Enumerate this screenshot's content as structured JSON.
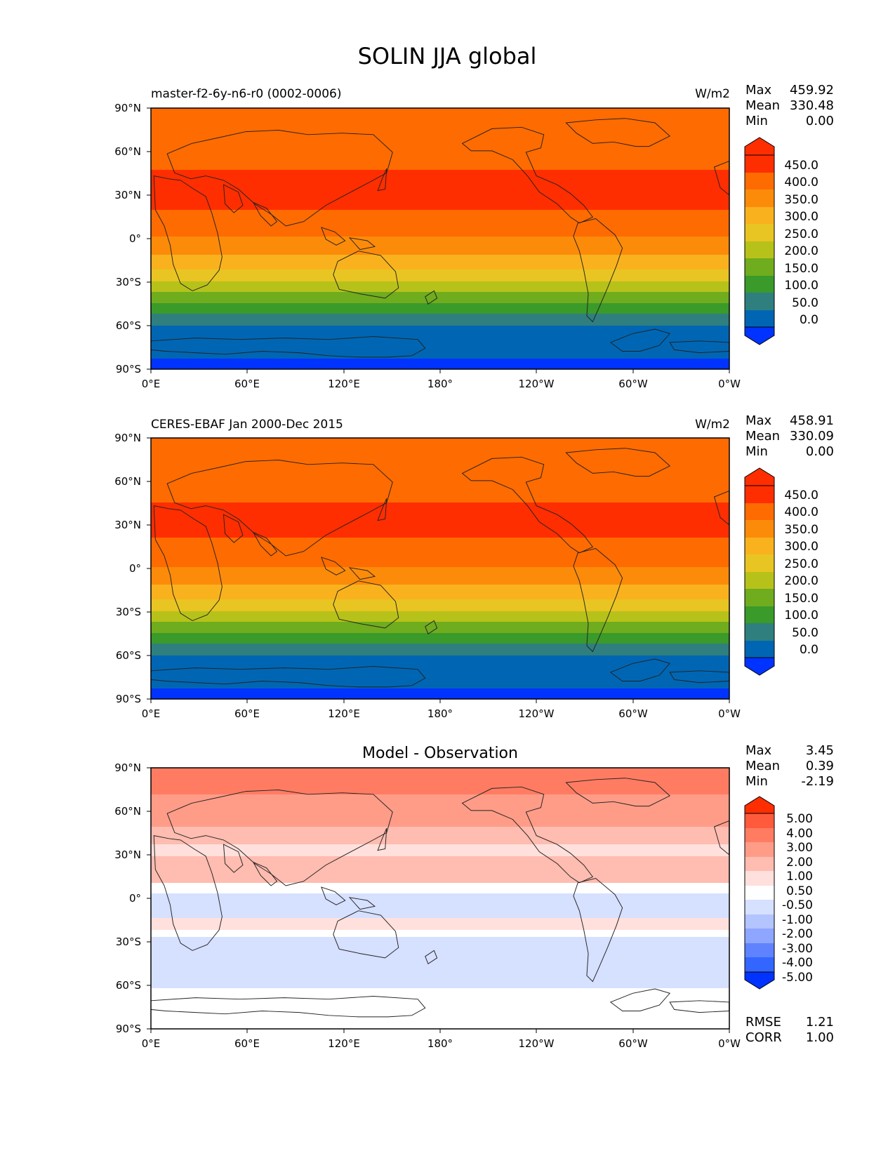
{
  "figure_title": "SOLIN JJA global",
  "x_ticks": [
    "0°E",
    "60°E",
    "120°E",
    "180°",
    "120°W",
    "60°W",
    "0°W"
  ],
  "y_ticks": [
    "90°N",
    "60°N",
    "30°N",
    "0°",
    "30°S",
    "60°S",
    "90°S"
  ],
  "colors": {
    "field_palette": [
      "#0033ff",
      "#0066b3",
      "#2f7f7f",
      "#3a9a2a",
      "#6fac1e",
      "#b6c21a",
      "#e8c522",
      "#f9b21e",
      "#fc8b0a",
      "#fe6b01",
      "#ff2e00"
    ],
    "diff_palette": [
      "#0033ff",
      "#3366ff",
      "#5f82ff",
      "#8ea6ff",
      "#b3c4ff",
      "#d6e0ff",
      "#ffffff",
      "#ffe0dc",
      "#ffbcb0",
      "#ff9c88",
      "#ff7c62",
      "#ff5a3c",
      "#ff2e00"
    ]
  },
  "panels": [
    {
      "title_left": "master-f2-6y-n6-r0 (0002-0006)",
      "title_center": "",
      "units": "W/m2",
      "stats": [
        {
          "label": "Max",
          "value": "459.92"
        },
        {
          "label": "Mean",
          "value": "330.48"
        },
        {
          "label": "Min",
          "value": "0.00"
        }
      ],
      "colorbar_labels": [
        "450.0",
        "400.0",
        "350.0",
        "300.0",
        "250.0",
        "200.0",
        "150.0",
        "100.0",
        "50.0",
        "0.0"
      ],
      "footer_stats": []
    },
    {
      "title_left": "CERES-EBAF Jan 2000-Dec 2015",
      "title_center": "",
      "units": "W/m2",
      "stats": [
        {
          "label": "Max",
          "value": "458.91"
        },
        {
          "label": "Mean",
          "value": "330.09"
        },
        {
          "label": "Min",
          "value": "0.00"
        }
      ],
      "colorbar_labels": [
        "450.0",
        "400.0",
        "350.0",
        "300.0",
        "250.0",
        "200.0",
        "150.0",
        "100.0",
        "50.0",
        "0.0"
      ],
      "footer_stats": []
    },
    {
      "title_left": "",
      "title_center": "Model - Observation",
      "units": "",
      "stats": [
        {
          "label": "Max",
          "value": "3.45"
        },
        {
          "label": "Mean",
          "value": "0.39"
        },
        {
          "label": "Min",
          "value": "-2.19"
        }
      ],
      "colorbar_labels": [
        "5.00",
        "4.00",
        "3.00",
        "2.00",
        "1.00",
        "0.50",
        "-0.50",
        "-1.00",
        "-2.00",
        "-3.00",
        "-4.00",
        "-5.00"
      ],
      "footer_stats": [
        {
          "label": "RMSE",
          "value": "1.21"
        },
        {
          "label": "CORR",
          "value": "1.00"
        }
      ]
    }
  ],
  "chart_data": [
    {
      "type": "heatmap",
      "title": "master-f2-6y-n6-r0 (0002-0006)",
      "units": "W/m2",
      "xlim": [
        0,
        360
      ],
      "ylim": [
        -90,
        90
      ],
      "levels": [
        0,
        50,
        100,
        150,
        200,
        250,
        300,
        350,
        400,
        450
      ],
      "zonal_bands": [
        {
          "lat": [
            47,
            90
          ],
          "value_range": [
            400,
            450
          ]
        },
        {
          "lat": [
            20,
            47
          ],
          "value_range": [
            450,
            460
          ]
        },
        {
          "lat": [
            0,
            20
          ],
          "value_range": [
            400,
            450
          ]
        },
        {
          "lat": [
            -12,
            0
          ],
          "value_range": [
            350,
            400
          ]
        },
        {
          "lat": [
            -22,
            -12
          ],
          "value_range": [
            300,
            350
          ]
        },
        {
          "lat": [
            -30,
            -22
          ],
          "value_range": [
            250,
            300
          ]
        },
        {
          "lat": [
            -37,
            -30
          ],
          "value_range": [
            200,
            250
          ]
        },
        {
          "lat": [
            -45,
            -37
          ],
          "value_range": [
            150,
            200
          ]
        },
        {
          "lat": [
            -52,
            -45
          ],
          "value_range": [
            100,
            150
          ]
        },
        {
          "lat": [
            -60,
            -52
          ],
          "value_range": [
            50,
            100
          ]
        },
        {
          "lat": [
            -83,
            -60
          ],
          "value_range": [
            0,
            50
          ]
        },
        {
          "lat": [
            -90,
            -83
          ],
          "value_range": [
            0,
            0
          ]
        }
      ],
      "max": 459.92,
      "mean": 330.48,
      "min": 0.0
    },
    {
      "type": "heatmap",
      "title": "CERES-EBAF Jan 2000-Dec 2015",
      "units": "W/m2",
      "xlim": [
        0,
        360
      ],
      "ylim": [
        -90,
        90
      ],
      "levels": [
        0,
        50,
        100,
        150,
        200,
        250,
        300,
        350,
        400,
        450
      ],
      "zonal_bands": [
        {
          "lat": [
            46,
            90
          ],
          "value_range": [
            400,
            450
          ]
        },
        {
          "lat": [
            21,
            46
          ],
          "value_range": [
            450,
            460
          ]
        },
        {
          "lat": [
            0,
            21
          ],
          "value_range": [
            400,
            450
          ]
        },
        {
          "lat": [
            -12,
            0
          ],
          "value_range": [
            350,
            400
          ]
        },
        {
          "lat": [
            -22,
            -12
          ],
          "value_range": [
            300,
            350
          ]
        },
        {
          "lat": [
            -30,
            -22
          ],
          "value_range": [
            250,
            300
          ]
        },
        {
          "lat": [
            -37,
            -30
          ],
          "value_range": [
            200,
            250
          ]
        },
        {
          "lat": [
            -45,
            -37
          ],
          "value_range": [
            150,
            200
          ]
        },
        {
          "lat": [
            -52,
            -45
          ],
          "value_range": [
            100,
            150
          ]
        },
        {
          "lat": [
            -60,
            -52
          ],
          "value_range": [
            50,
            100
          ]
        },
        {
          "lat": [
            -83,
            -60
          ],
          "value_range": [
            0,
            50
          ]
        },
        {
          "lat": [
            -90,
            -83
          ],
          "value_range": [
            0,
            0
          ]
        }
      ],
      "max": 458.91,
      "mean": 330.09,
      "min": 0.0
    },
    {
      "type": "heatmap",
      "title": "Model - Observation",
      "xlim": [
        0,
        360
      ],
      "ylim": [
        -90,
        90
      ],
      "levels": [
        -5,
        -4,
        -3,
        -2,
        -1,
        -0.5,
        0.5,
        1,
        2,
        3,
        4,
        5
      ],
      "zonal_bands": [
        {
          "lat": [
            72,
            90
          ],
          "value_range": [
            3,
            4
          ]
        },
        {
          "lat": [
            50,
            72
          ],
          "value_range": [
            2,
            3
          ]
        },
        {
          "lat": [
            38,
            50
          ],
          "value_range": [
            1,
            2
          ]
        },
        {
          "lat": [
            30,
            38
          ],
          "value_range": [
            0.5,
            1
          ]
        },
        {
          "lat": [
            12,
            30
          ],
          "value_range": [
            1,
            2
          ]
        },
        {
          "lat": [
            5,
            12
          ],
          "value_range": [
            -0.5,
            0.5
          ]
        },
        {
          "lat": [
            -12,
            5
          ],
          "value_range": [
            -1,
            -0.5
          ]
        },
        {
          "lat": [
            -20,
            -12
          ],
          "value_range": [
            0.5,
            1
          ]
        },
        {
          "lat": [
            -25,
            -20
          ],
          "value_range": [
            -0.5,
            0.5
          ]
        },
        {
          "lat": [
            -60,
            -25
          ],
          "value_range": [
            -1,
            -0.5
          ]
        },
        {
          "lat": [
            -90,
            -60
          ],
          "value_range": [
            -0.5,
            0.5
          ]
        }
      ],
      "max": 3.45,
      "mean": 0.39,
      "min": -2.19,
      "rmse": 1.21,
      "corr": 1.0
    }
  ]
}
